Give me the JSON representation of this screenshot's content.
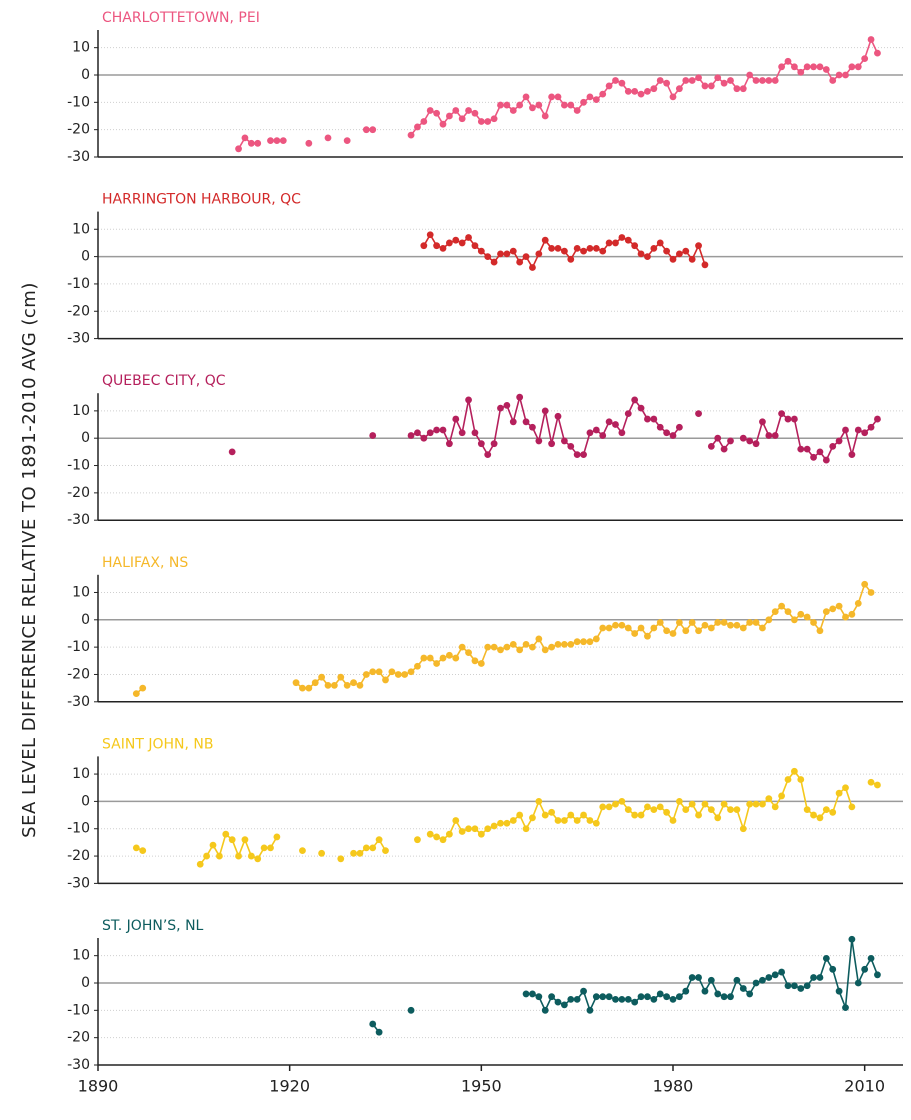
{
  "ylabel": "SEA LEVEL DIFFERENCE RELATIVE TO 1891-2010 AVG (cm)",
  "chart_data": [
    {
      "type": "line",
      "title": "CHARLOTTETOWN, PEI",
      "color": "#ec5680",
      "xlim": [
        1890,
        2016
      ],
      "ylim": [
        -30,
        15
      ],
      "yticks": [
        10,
        0,
        -10,
        -20,
        -30
      ],
      "x": [
        1912,
        1913,
        1914,
        1915,
        1916,
        1917,
        1918,
        1919,
        1921,
        1923,
        1925,
        1926,
        1928,
        1929,
        1931,
        1932,
        1933,
        1936,
        1939,
        1940,
        1941,
        1942,
        1943,
        1944,
        1945,
        1946,
        1947,
        1948,
        1949,
        1950,
        1951,
        1952,
        1953,
        1954,
        1955,
        1956,
        1957,
        1958,
        1959,
        1960,
        1961,
        1962,
        1963,
        1964,
        1965,
        1966,
        1967,
        1968,
        1969,
        1970,
        1971,
        1972,
        1973,
        1974,
        1975,
        1976,
        1977,
        1978,
        1979,
        1980,
        1981,
        1982,
        1983,
        1984,
        1985,
        1986,
        1987,
        1988,
        1989,
        1990,
        1991,
        1992,
        1993,
        1994,
        1995,
        1996,
        1997,
        1998,
        1999,
        2000,
        2001,
        2002,
        2003,
        2004,
        2005,
        2006,
        2007,
        2008,
        2009,
        2010,
        2011,
        2012
      ],
      "values": [
        -27,
        -23,
        -25,
        -25,
        null,
        -24,
        -24,
        -24,
        null,
        -25,
        null,
        -23,
        null,
        -24,
        null,
        -20,
        -20,
        null,
        -22,
        -19,
        -17,
        -13,
        -14,
        -18,
        -15,
        -13,
        -16,
        -13,
        -14,
        -17,
        -17,
        -16,
        -11,
        -11,
        -13,
        -11,
        -8,
        -12,
        -11,
        -15,
        -8,
        -8,
        -11,
        -11,
        -13,
        -10,
        -8,
        -9,
        -7,
        -4,
        -2,
        -3,
        -6,
        -6,
        -7,
        -6,
        -5,
        -2,
        -3,
        -8,
        -5,
        -2,
        -2,
        -1,
        -4,
        -4,
        -1,
        -3,
        -2,
        -5,
        -5,
        0,
        -2,
        -2,
        -2,
        -2,
        3,
        5,
        3,
        1,
        3,
        3,
        3,
        2,
        -2,
        0,
        0,
        3,
        3,
        6,
        13,
        8
      ]
    },
    {
      "type": "line",
      "title": "HARRINGTON HARBOUR, QC",
      "color": "#d32a2a",
      "xlim": [
        1890,
        2016
      ],
      "ylim": [
        -30,
        15
      ],
      "yticks": [
        10,
        0,
        -10,
        -20,
        -30
      ],
      "x": [
        1941,
        1942,
        1943,
        1944,
        1945,
        1946,
        1947,
        1948,
        1949,
        1950,
        1951,
        1952,
        1953,
        1954,
        1955,
        1956,
        1957,
        1958,
        1959,
        1960,
        1961,
        1962,
        1963,
        1964,
        1965,
        1966,
        1967,
        1968,
        1969,
        1970,
        1971,
        1972,
        1973,
        1974,
        1975,
        1976,
        1977,
        1978,
        1979,
        1980,
        1981,
        1982,
        1983,
        1984,
        1985
      ],
      "values": [
        4,
        8,
        4,
        3,
        5,
        6,
        5,
        7,
        4,
        2,
        0,
        -2,
        1,
        1,
        2,
        -2,
        0,
        -4,
        1,
        6,
        3,
        3,
        2,
        -1,
        3,
        2,
        3,
        3,
        2,
        5,
        5,
        7,
        6,
        4,
        1,
        0,
        3,
        5,
        2,
        -1,
        1,
        2,
        -1,
        4,
        -3
      ]
    },
    {
      "type": "line",
      "title": "QUEBEC CITY, QC",
      "color": "#b5205c",
      "xlim": [
        1890,
        2016
      ],
      "ylim": [
        -30,
        15
      ],
      "yticks": [
        10,
        0,
        -10,
        -20,
        -30
      ],
      "x": [
        1911,
        1920,
        1933,
        1936,
        1939,
        1940,
        1941,
        1942,
        1943,
        1944,
        1945,
        1946,
        1947,
        1948,
        1949,
        1950,
        1951,
        1952,
        1953,
        1954,
        1955,
        1956,
        1957,
        1958,
        1959,
        1960,
        1961,
        1962,
        1963,
        1964,
        1965,
        1966,
        1967,
        1968,
        1969,
        1970,
        1971,
        1972,
        1973,
        1974,
        1975,
        1976,
        1977,
        1978,
        1979,
        1980,
        1981,
        1982,
        1984,
        1985,
        1986,
        1987,
        1988,
        1989,
        1990,
        1991,
        1992,
        1993,
        1994,
        1995,
        1996,
        1997,
        1998,
        1999,
        2000,
        2001,
        2002,
        2003,
        2004,
        2005,
        2006,
        2007,
        2008,
        2009,
        2010,
        2011,
        2012
      ],
      "values": [
        -5,
        null,
        1,
        null,
        1,
        2,
        0,
        2,
        3,
        3,
        -2,
        7,
        2,
        14,
        2,
        -2,
        -6,
        -2,
        11,
        12,
        6,
        15,
        6,
        4,
        -1,
        10,
        -2,
        8,
        -1,
        -3,
        -6,
        -6,
        2,
        3,
        1,
        6,
        5,
        2,
        9,
        14,
        11,
        7,
        7,
        4,
        2,
        1,
        4,
        null,
        9,
        null,
        -3,
        0,
        -4,
        -1,
        null,
        0,
        -1,
        -2,
        6,
        1,
        1,
        9,
        7,
        7,
        -4,
        -4,
        -7,
        -5,
        -8,
        -3,
        -1,
        3,
        -6,
        3,
        2,
        4,
        7
      ]
    },
    {
      "type": "line",
      "title": "HALIFAX, NS",
      "color": "#f5b82a",
      "xlim": [
        1890,
        2016
      ],
      "ylim": [
        -30,
        15
      ],
      "yticks": [
        10,
        0,
        -10,
        -20,
        -30
      ],
      "x": [
        1896,
        1897,
        1905,
        1921,
        1922,
        1923,
        1924,
        1925,
        1926,
        1927,
        1928,
        1929,
        1930,
        1931,
        1932,
        1933,
        1934,
        1935,
        1936,
        1937,
        1938,
        1939,
        1940,
        1941,
        1942,
        1943,
        1944,
        1945,
        1946,
        1947,
        1948,
        1949,
        1950,
        1951,
        1952,
        1953,
        1954,
        1955,
        1956,
        1957,
        1958,
        1959,
        1960,
        1961,
        1962,
        1963,
        1964,
        1965,
        1966,
        1967,
        1968,
        1969,
        1970,
        1971,
        1972,
        1973,
        1974,
        1975,
        1976,
        1977,
        1978,
        1979,
        1980,
        1981,
        1982,
        1983,
        1984,
        1985,
        1986,
        1987,
        1988,
        1989,
        1990,
        1991,
        1992,
        1993,
        1994,
        1995,
        1996,
        1997,
        1998,
        1999,
        2000,
        2001,
        2002,
        2003,
        2004,
        2005,
        2006,
        2007,
        2008,
        2009,
        2010,
        2011
      ],
      "values": [
        -27,
        -25,
        null,
        -23,
        -25,
        -25,
        -23,
        -21,
        -24,
        -24,
        -21,
        -24,
        -23,
        -24,
        -20,
        -19,
        -19,
        -22,
        -19,
        -20,
        -20,
        -19,
        -17,
        -14,
        -14,
        -16,
        -14,
        -13,
        -14,
        -10,
        -12,
        -15,
        -16,
        -10,
        -10,
        -11,
        -10,
        -9,
        -11,
        -9,
        -10,
        -7,
        -11,
        -10,
        -9,
        -9,
        -9,
        -8,
        -8,
        -8,
        -7,
        -3,
        -3,
        -2,
        -2,
        -3,
        -5,
        -3,
        -6,
        -3,
        -1,
        -4,
        -5,
        -1,
        -4,
        -1,
        -4,
        -2,
        -3,
        -1,
        -1,
        -2,
        -2,
        -3,
        -1,
        -1,
        -3,
        0,
        3,
        5,
        3,
        0,
        2,
        1,
        -1,
        -4,
        3,
        4,
        5,
        1,
        2,
        6,
        13,
        10
      ]
    },
    {
      "type": "line",
      "title": "SAINT JOHN, NB",
      "color": "#f5c81c",
      "xlim": [
        1890,
        2016
      ],
      "ylim": [
        -30,
        15
      ],
      "yticks": [
        10,
        0,
        -10,
        -20,
        -30
      ],
      "x": [
        1896,
        1897,
        1900,
        1906,
        1907,
        1908,
        1909,
        1910,
        1911,
        1912,
        1913,
        1914,
        1915,
        1916,
        1917,
        1918,
        1920,
        1922,
        1924,
        1925,
        1927,
        1928,
        1929,
        1930,
        1931,
        1932,
        1933,
        1934,
        1935,
        1937,
        1940,
        1941,
        1942,
        1943,
        1944,
        1945,
        1946,
        1947,
        1948,
        1949,
        1950,
        1951,
        1952,
        1953,
        1954,
        1955,
        1956,
        1957,
        1958,
        1959,
        1960,
        1961,
        1962,
        1963,
        1964,
        1965,
        1966,
        1967,
        1968,
        1969,
        1970,
        1971,
        1972,
        1973,
        1974,
        1975,
        1976,
        1977,
        1978,
        1979,
        1980,
        1981,
        1982,
        1983,
        1984,
        1985,
        1986,
        1987,
        1988,
        1989,
        1990,
        1991,
        1992,
        1993,
        1994,
        1995,
        1996,
        1997,
        1998,
        1999,
        2000,
        2001,
        2002,
        2003,
        2004,
        2005,
        2006,
        2007,
        2008,
        2009,
        2011,
        2012
      ],
      "values": [
        -17,
        -18,
        null,
        -23,
        -20,
        -16,
        -20,
        -12,
        -14,
        -20,
        -14,
        -20,
        -21,
        -17,
        -17,
        -13,
        null,
        -18,
        null,
        -19,
        null,
        -21,
        null,
        -19,
        -19,
        -17,
        -17,
        -14,
        -18,
        null,
        -14,
        null,
        -12,
        -13,
        -14,
        -12,
        -7,
        -11,
        -10,
        -10,
        -12,
        -10,
        -9,
        -8,
        -8,
        -7,
        -5,
        -10,
        -6,
        0,
        -5,
        -4,
        -7,
        -7,
        -5,
        -7,
        -5,
        -7,
        -8,
        -2,
        -2,
        -1,
        0,
        -3,
        -5,
        -5,
        -2,
        -3,
        -2,
        -4,
        -7,
        0,
        -3,
        -1,
        -5,
        -1,
        -3,
        -6,
        -1,
        -3,
        -3,
        -10,
        -1,
        -1,
        -1,
        1,
        -2,
        2,
        8,
        11,
        8,
        -3,
        -5,
        -6,
        -3,
        -4,
        3,
        5,
        -2,
        null,
        7,
        6
      ]
    },
    {
      "type": "line",
      "title": "ST. JOHN’S, NL",
      "color": "#0d5c5e",
      "xlim": [
        1890,
        2016
      ],
      "ylim": [
        -30,
        15
      ],
      "yticks": [
        10,
        0,
        -10,
        -20,
        -30
      ],
      "xticks": [
        1890,
        1920,
        1950,
        1980,
        2010
      ],
      "x": [
        1933,
        1934,
        1936,
        1939,
        1945,
        1957,
        1958,
        1959,
        1960,
        1961,
        1962,
        1963,
        1964,
        1965,
        1966,
        1967,
        1968,
        1969,
        1970,
        1971,
        1972,
        1973,
        1974,
        1975,
        1976,
        1977,
        1978,
        1979,
        1980,
        1981,
        1982,
        1983,
        1984,
        1985,
        1986,
        1987,
        1988,
        1989,
        1990,
        1991,
        1992,
        1993,
        1994,
        1995,
        1996,
        1997,
        1998,
        1999,
        2000,
        2001,
        2002,
        2003,
        2004,
        2005,
        2006,
        2007,
        2008,
        2009,
        2010,
        2011,
        2012
      ],
      "values": [
        -15,
        -18,
        null,
        -10,
        null,
        -4,
        -4,
        -5,
        -10,
        -5,
        -7,
        -8,
        -6,
        -6,
        -3,
        -10,
        -5,
        -5,
        -5,
        -6,
        -6,
        -6,
        -7,
        -5,
        -5,
        -6,
        -4,
        -5,
        -6,
        -5,
        -3,
        2,
        2,
        -3,
        1,
        -4,
        -5,
        -5,
        1,
        -2,
        -4,
        0,
        1,
        2,
        3,
        4,
        -1,
        -1,
        -2,
        -1,
        2,
        2,
        9,
        5,
        -3,
        -9,
        16,
        0,
        5,
        9,
        3
      ]
    }
  ]
}
